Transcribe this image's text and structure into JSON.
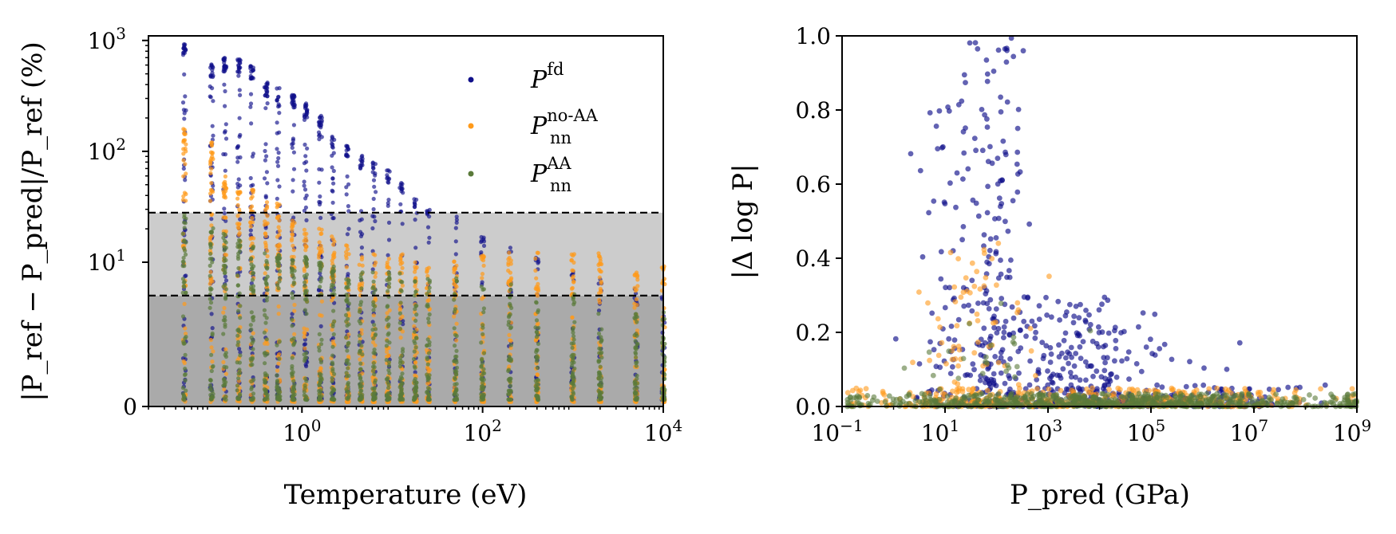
{
  "chart_data": [
    {
      "type": "scatter",
      "id": "left",
      "xlabel": "Temperature (eV)",
      "ylabel": "|P_ref − P_pred|/P_ref (%)",
      "xscale": "log",
      "yscale": "symlog",
      "xlim": [
        0.02,
        10000
      ],
      "ylim": [
        0,
        1100
      ],
      "symlog_linthresh": 5,
      "xticks": [
        {
          "value": 1,
          "base": "10",
          "exp": "0"
        },
        {
          "value": 100,
          "base": "10",
          "exp": "2"
        },
        {
          "value": 10000,
          "base": "10",
          "exp": "4"
        }
      ],
      "yticks": [
        {
          "value": 0,
          "base": "0",
          "exp": ""
        },
        {
          "value": 10,
          "base": "10",
          "exp": "1"
        },
        {
          "value": 100,
          "base": "10",
          "exp": "2"
        },
        {
          "value": 1000,
          "base": "10",
          "exp": "3"
        }
      ],
      "bands": [
        {
          "from": 0,
          "to": 5,
          "color": "#aaaaaa"
        },
        {
          "from": 5,
          "to": 28,
          "color": "#cccccc"
        }
      ],
      "hlines": [
        5,
        28
      ],
      "temperatures": [
        0.05,
        0.1,
        0.14,
        0.2,
        0.28,
        0.4,
        0.55,
        0.8,
        1.1,
        1.6,
        2.2,
        3.2,
        4.5,
        6.3,
        9,
        12.6,
        18,
        25,
        50,
        100,
        200,
        400,
        1000,
        2000,
        5000,
        10000
      ],
      "series": [
        {
          "name": "P^fd",
          "label_base": "P",
          "label_sup": "fd",
          "label_sub": "",
          "color": "#10108a",
          "envelope": [
            950,
            620,
            700,
            680,
            600,
            420,
            380,
            330,
            270,
            210,
            140,
            115,
            92,
            80,
            68,
            52,
            38,
            32,
            26,
            17,
            14,
            11,
            9,
            7,
            6,
            5
          ]
        },
        {
          "name": "P_nn^no-AA",
          "label_base": "P",
          "label_sup": "no-AA",
          "label_sub": "nn",
          "color": "#ff9a1a",
          "envelope": [
            160,
            130,
            60,
            45,
            45,
            35,
            35,
            25,
            22,
            20,
            18,
            14,
            12,
            12,
            12,
            12,
            10,
            10,
            10,
            12,
            12,
            12,
            12,
            12,
            9,
            9
          ]
        },
        {
          "name": "P_nn^AA",
          "label_base": "P",
          "label_sup": "AA",
          "label_sub": "nn",
          "color": "#5a7a3a",
          "envelope": [
            28,
            20,
            18,
            16,
            14,
            12,
            12,
            11,
            11,
            10,
            9,
            9,
            8,
            8,
            8,
            8,
            7,
            7,
            7,
            6,
            6,
            5,
            5,
            4,
            4,
            4
          ]
        }
      ]
    },
    {
      "type": "scatter",
      "id": "right",
      "xlabel": "P_pred (GPa)",
      "ylabel": "|Δ log P|",
      "xscale": "log",
      "yscale": "linear",
      "xlim": [
        0.1,
        1000000000
      ],
      "ylim": [
        0,
        1.0
      ],
      "xticks": [
        {
          "value": 0.1,
          "base": "10",
          "exp": "−1"
        },
        {
          "value": 10,
          "base": "10",
          "exp": "1"
        },
        {
          "value": 1000,
          "base": "10",
          "exp": "3"
        },
        {
          "value": 100000,
          "base": "10",
          "exp": "5"
        },
        {
          "value": 10000000,
          "base": "10",
          "exp": "7"
        },
        {
          "value": 1000000000,
          "base": "10",
          "exp": "9"
        }
      ],
      "yticks": [
        {
          "value": 0.0,
          "label": "0.0"
        },
        {
          "value": 0.2,
          "label": "0.2"
        },
        {
          "value": 0.4,
          "label": "0.4"
        },
        {
          "value": 0.6,
          "label": "0.6"
        },
        {
          "value": 0.8,
          "label": "0.8"
        },
        {
          "value": 1.0,
          "label": "1.0"
        }
      ],
      "series": [
        {
          "name": "P^fd",
          "color": "#10108a",
          "clusters": [
            {
              "log_center": 1.3,
              "log_spread": 0.45,
              "y_max": 0.9,
              "count": 120
            },
            {
              "log_center": 2.0,
              "log_spread": 0.25,
              "y_max": 1.0,
              "count": 140
            },
            {
              "log_center": 3.5,
              "log_spread": 0.9,
              "y_max": 0.3,
              "count": 260
            },
            {
              "log_center": 5.5,
              "log_spread": 1.2,
              "y_max": 0.06,
              "count": 120
            }
          ]
        },
        {
          "name": "P_nn^no-AA",
          "color": "#ff9a1a",
          "clusters": [
            {
              "log_center": 1.6,
              "log_spread": 0.6,
              "y_max": 0.45,
              "count": 80
            },
            {
              "log_center": 4.0,
              "log_spread": 2.3,
              "y_max": 0.05,
              "count": 420
            }
          ]
        },
        {
          "name": "P_nn^AA",
          "color": "#5a7a3a",
          "clusters": [
            {
              "log_center": 2.0,
              "log_spread": 0.8,
              "y_max": 0.3,
              "count": 40
            },
            {
              "log_center": 4.0,
              "log_spread": 2.4,
              "y_max": 0.035,
              "count": 700
            }
          ]
        }
      ]
    }
  ]
}
